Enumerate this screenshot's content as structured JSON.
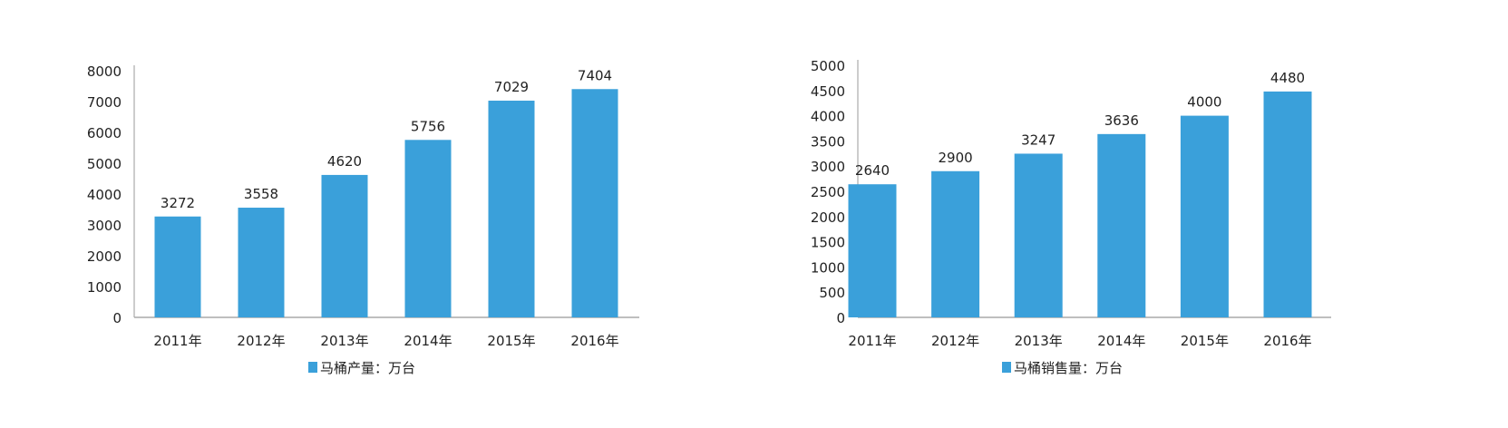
{
  "chart_data": [
    {
      "type": "bar",
      "categories": [
        "2011年",
        "2012年",
        "2013年",
        "2014年",
        "2015年",
        "2016年"
      ],
      "series": [
        {
          "name": "马桶产量：万台",
          "values": [
            3272,
            3558,
            4620,
            5756,
            7029,
            7404
          ]
        }
      ],
      "data_labels": [
        "3272",
        "3558",
        "4620",
        "5756",
        "7029",
        "7404"
      ],
      "yticks": [
        "0",
        "1000",
        "2000",
        "3000",
        "4000",
        "5000",
        "6000",
        "7000",
        "8000"
      ],
      "ylim": [
        0,
        8000
      ],
      "grid": false,
      "legend": "bottom",
      "color": "#3aa0da"
    },
    {
      "type": "bar",
      "categories": [
        "2011年",
        "2012年",
        "2013年",
        "2014年",
        "2015年",
        "2016年"
      ],
      "series": [
        {
          "name": "马桶销售量：万台",
          "values": [
            2640,
            2900,
            3247,
            3636,
            4000,
            4480
          ]
        }
      ],
      "data_labels": [
        "2640",
        "2900",
        "3247",
        "3636",
        "4000",
        "4480"
      ],
      "yticks": [
        "0",
        "500",
        "1000",
        "1500",
        "2000",
        "2500",
        "3000",
        "3500",
        "4000",
        "4500",
        "5000"
      ],
      "ylim": [
        0,
        5000
      ],
      "grid": false,
      "legend": "bottom",
      "color": "#3aa0da"
    }
  ]
}
